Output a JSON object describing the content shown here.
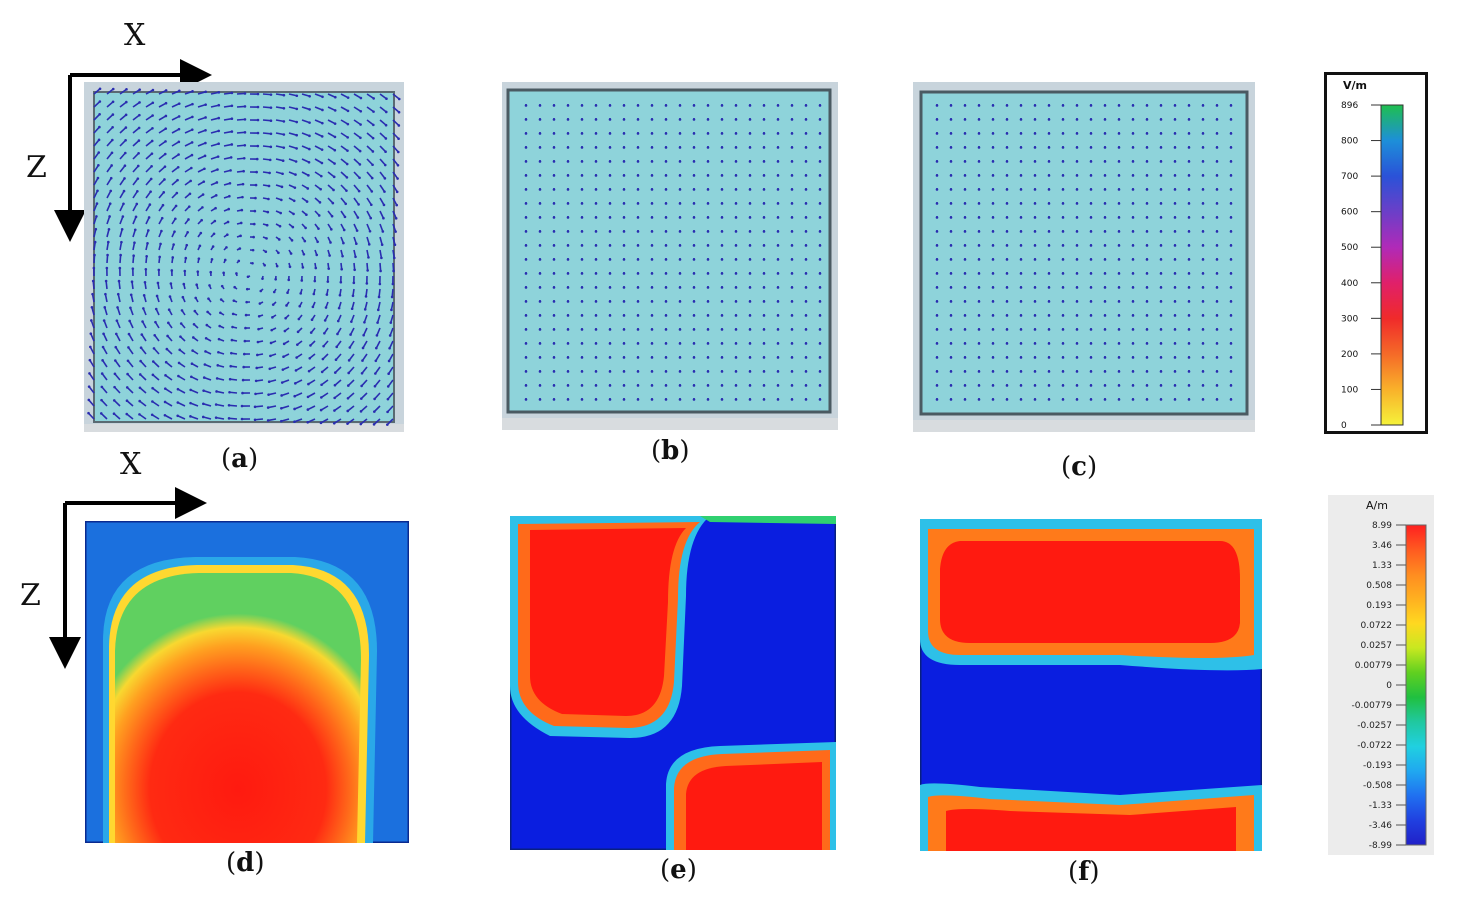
{
  "figure": {
    "top_row": {
      "axes": {
        "x_label": "X",
        "z_label": "Z"
      },
      "panels": [
        {
          "id": "a",
          "caption_open": "(",
          "caption_letter": "a",
          "caption_close": ")",
          "pattern": "vortex-arrows"
        },
        {
          "id": "b",
          "caption_open": "(",
          "caption_letter": "b",
          "caption_close": ")",
          "pattern": "uniform-arrows"
        },
        {
          "id": "c",
          "caption_open": "(",
          "caption_letter": "c",
          "caption_close": ")",
          "pattern": "uniform-arrows"
        }
      ],
      "colorbar": {
        "unit": "V/m",
        "max": 896,
        "ticks": [
          "896",
          "800",
          "700",
          "600",
          "500",
          "400",
          "300",
          "200",
          "100",
          "0"
        ],
        "gradient_top_to_bottom": [
          "#1fbf4f",
          "#1d8fd9",
          "#2a52d8",
          "#6b3fc8",
          "#b02ab8",
          "#e0206a",
          "#f02a2a",
          "#f56a28",
          "#f9b12a",
          "#f5f23a"
        ]
      }
    },
    "bottom_row": {
      "axes": {
        "x_label": "X",
        "z_label": "Z"
      },
      "panels": [
        {
          "id": "d",
          "caption_open": "(",
          "caption_letter": "d",
          "caption_close": ")",
          "pattern": "single-lobe"
        },
        {
          "id": "e",
          "caption_open": "(",
          "caption_letter": "e",
          "caption_close": ")",
          "pattern": "four-quadrant"
        },
        {
          "id": "f",
          "caption_open": "(",
          "caption_letter": "f",
          "caption_close": ")",
          "pattern": "three-band"
        }
      ],
      "colorbar": {
        "unit": "A/m",
        "ticks": [
          "8.99",
          "3.46",
          "1.33",
          "0.508",
          "0.193",
          "0.0722",
          "0.0257",
          "0.00779",
          "0",
          "-0.00779",
          "-0.0257",
          "-0.0722",
          "-0.193",
          "-0.508",
          "-1.33",
          "-3.46",
          "-8.99"
        ],
        "gradient_top_to_bottom": [
          "#ff2020",
          "#ff5a20",
          "#ff8c20",
          "#ffb020",
          "#ffd820",
          "#c8e820",
          "#60d020",
          "#20c040",
          "#20c8a0",
          "#20d0e0",
          "#20a8f0",
          "#2070f0",
          "#2040e0",
          "#2020c8"
        ]
      }
    },
    "colors": {
      "hot": "#ff1a10",
      "cold": "#0a1ee0",
      "background_field": "#1a6fe0",
      "glass": "#8fd6dc",
      "arrow": "#2a2db0"
    }
  }
}
